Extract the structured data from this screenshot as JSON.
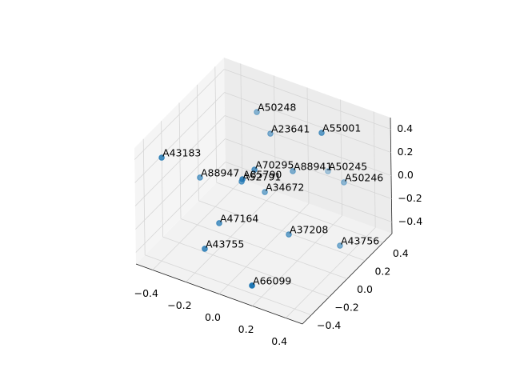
{
  "chart_data": {
    "type": "scatter3d",
    "color": "#1f77b4",
    "grid": true,
    "xlim": [
      -0.5,
      0.5
    ],
    "ylim": [
      -0.5,
      0.5
    ],
    "zlim": [
      -0.5,
      0.5
    ],
    "xticks": [
      {
        "value": -0.4,
        "label": "−0.4"
      },
      {
        "value": -0.2,
        "label": "−0.2"
      },
      {
        "value": 0.0,
        "label": "0.0"
      },
      0.2,
      0.4
    ],
    "yticks": [
      {
        "value": -0.4,
        "label": "−0.4"
      },
      {
        "value": -0.2,
        "label": "−0.2"
      },
      {
        "value": 0.0,
        "label": "0.0"
      },
      0.2,
      0.4
    ],
    "zticks": [
      {
        "value": -0.4,
        "label": "−0.4"
      },
      {
        "value": -0.2,
        "label": "−0.2"
      },
      {
        "value": 0.0,
        "label": "0.0"
      },
      0.2,
      0.4
    ],
    "labels": [
      "A50248",
      "A23641",
      "A55001",
      "A43183",
      "A88947",
      "A70295",
      "A88941",
      "A50245",
      "A50246",
      "A52791",
      "A85790",
      "A34672",
      "A47164",
      "A37208",
      "A43755",
      "A43756",
      "A66099"
    ],
    "x": [
      -0.219,
      -0.116,
      0.159,
      -0.492,
      -0.338,
      -0.08,
      0.045,
      0.149,
      0.269,
      -0.136,
      -0.091,
      -0.039,
      -0.156,
      0.15,
      -0.159,
      0.374,
      0.16
    ],
    "y": [
      0.341,
      0.299,
      0.362,
      -0.216,
      -0.078,
      0.053,
      0.247,
      0.444,
      0.4,
      0.012,
      -0.061,
      0.089,
      -0.205,
      0.002,
      -0.362,
      0.155,
      -0.429
    ],
    "z": [
      0.3,
      0.2,
      0.3,
      0.2,
      0.0,
      0.1,
      0.0,
      -0.1,
      -0.1,
      0.0,
      0.1,
      -0.1,
      -0.2,
      -0.3,
      -0.3,
      -0.4,
      -0.4
    ]
  }
}
